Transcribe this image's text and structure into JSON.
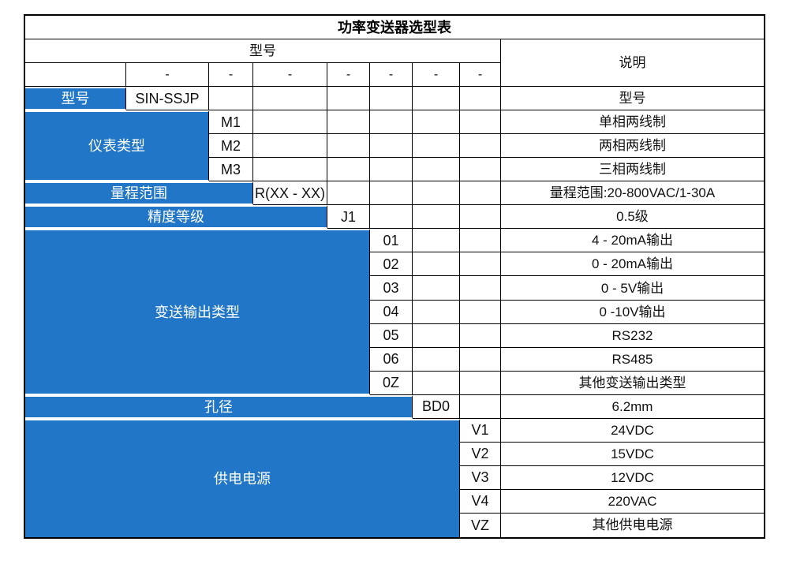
{
  "title": "功率变送器选型表",
  "accent_color": "#2176C7",
  "border_color": "#000000",
  "header": {
    "model_label": "型号",
    "desc_label": "说明",
    "dash": "-"
  },
  "sections": {
    "model": {
      "label": "型号",
      "rows": [
        {
          "code": "SIN-SSJP",
          "desc": "型号"
        }
      ]
    },
    "meter_type": {
      "label": "仪表类型",
      "rows": [
        {
          "code": "M1",
          "desc": "单相两线制"
        },
        {
          "code": "M2",
          "desc": "两相两线制"
        },
        {
          "code": "M3",
          "desc": "三相两线制"
        }
      ]
    },
    "range": {
      "label": "量程范围",
      "rows": [
        {
          "code": "R(XX - XX)",
          "desc": "量程范围:20-800VAC/1-30A"
        }
      ]
    },
    "accuracy": {
      "label": "精度等级",
      "rows": [
        {
          "code": "J1",
          "desc": "0.5级"
        }
      ]
    },
    "output_type": {
      "label": "变送输出类型",
      "rows": [
        {
          "code": "01",
          "desc": "4 - 20mA输出"
        },
        {
          "code": "02",
          "desc": "0 - 20mA输出"
        },
        {
          "code": "03",
          "desc": "0 - 5V输出"
        },
        {
          "code": "04",
          "desc": "0 -10V输出"
        },
        {
          "code": "05",
          "desc": "RS232"
        },
        {
          "code": "06",
          "desc": "RS485"
        },
        {
          "code": "0Z",
          "desc": "其他变送输出类型"
        }
      ]
    },
    "aperture": {
      "label": "孔径",
      "rows": [
        {
          "code": "BD0",
          "desc": "6.2mm"
        }
      ]
    },
    "power": {
      "label": "供电电源",
      "rows": [
        {
          "code": "V1",
          "desc": "24VDC"
        },
        {
          "code": "V2",
          "desc": "15VDC"
        },
        {
          "code": "V3",
          "desc": "12VDC"
        },
        {
          "code": "V4",
          "desc": "220VAC"
        },
        {
          "code": "VZ",
          "desc": "其他供电电源"
        }
      ]
    }
  }
}
